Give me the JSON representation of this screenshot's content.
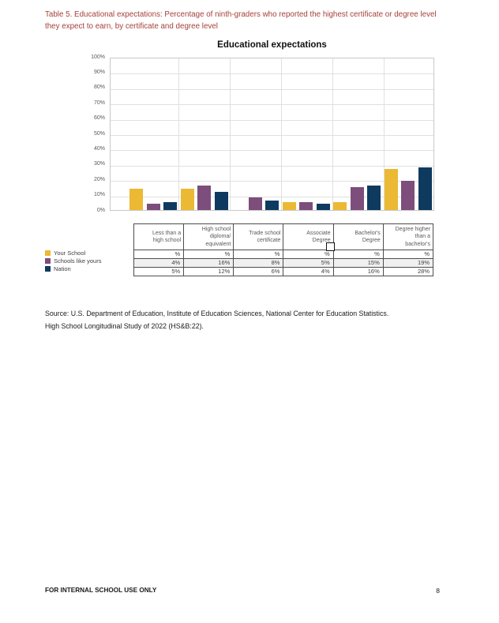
{
  "page": {
    "caption": "Table 5. Educational expectations: Percentage of ninth-graders who reported the highest certificate or degree level they expect to earn, by certificate and degree level",
    "caption_color": "#A4403A",
    "source_line1": "Source: U.S. Department of Education, Institute of Education Sciences, National Center for Education Statistics.",
    "source_line2": "High School Longitudinal Study of 2022 (HS&B:22).",
    "footer_left": "FOR INTERNAL SCHOOL USE ONLY",
    "page_number": "8"
  },
  "chart_data": {
    "type": "bar",
    "title": "Educational expectations",
    "categories": [
      "Less than a high school",
      "High school diploma/equivalent",
      "Trade school certificate",
      "Associate Degree",
      "Bachelor's Degree",
      "Degree higher than a bachelor's"
    ],
    "series": [
      {
        "name": "Your School",
        "color": "#EBB933",
        "values_estimated": true,
        "values": [
          14,
          14,
          null,
          5,
          5,
          27
        ]
      },
      {
        "name": "Schools like yours",
        "color": "#7D4D7C",
        "values": [
          4,
          16,
          8,
          5,
          15,
          19
        ]
      },
      {
        "name": "Nation",
        "color": "#0F3A5F",
        "values": [
          5,
          12,
          6,
          4,
          16,
          28
        ]
      }
    ],
    "ylabel": "",
    "xlabel": "",
    "ylim": [
      0,
      100
    ],
    "yticks": [
      "0%",
      "10%",
      "20%",
      "30%",
      "40%",
      "50%",
      "60%",
      "70%",
      "80%",
      "90%",
      "100%"
    ],
    "grid": true,
    "legend_position": "left of table"
  },
  "table": {
    "columns": [
      "Less than a\nhigh school",
      "High school\ndiploma/\nequivalent",
      "Trade school\ncertificate",
      "Associate\nDegree",
      "Bachelor's\nDegree",
      "Degree higher\nthan a\nbachelor's"
    ],
    "rows": [
      {
        "label": "Your School",
        "swatch": "#EBB933",
        "cells": [
          "%",
          "%",
          "%",
          "%",
          "%",
          "%"
        ]
      },
      {
        "label": "Schools like yours",
        "swatch": "#7D4D7C",
        "cells": [
          "4%",
          "16%",
          "8%",
          "5%",
          "15%",
          "19%"
        ]
      },
      {
        "label": "Nation",
        "swatch": "#0F3A5F",
        "cells": [
          "5%",
          "12%",
          "6%",
          "4%",
          "16%",
          "28%"
        ]
      }
    ]
  }
}
